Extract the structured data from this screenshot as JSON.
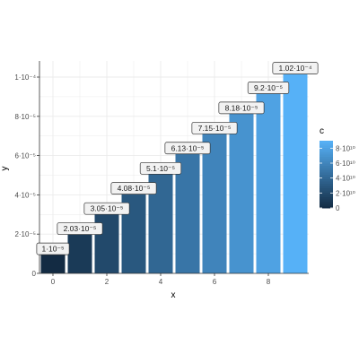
{
  "chart_data": {
    "type": "bar",
    "x": [
      0,
      1,
      2,
      3,
      4,
      5,
      6,
      7,
      8,
      9
    ],
    "values": [
      1e-05,
      2.03e-05,
      3.05e-05,
      4.08e-05,
      5.1e-05,
      6.13e-05,
      7.15e-05,
      8.18e-05,
      9.2e-05,
      0.000102
    ],
    "data_labels": [
      "1·10⁻⁵",
      "2.03·10⁻⁵",
      "3.05·10⁻⁵",
      "4.08·10⁻⁵",
      "5.1·10⁻⁵",
      "6.13·10⁻⁵",
      "7.15·10⁻⁵",
      "8.18·10⁻⁵",
      "9.2·10⁻⁵",
      "1.02·10⁻⁴"
    ],
    "fill_values": [
      0,
      10000000000.0,
      20000000000.0,
      30000000000.0,
      40000000000.0,
      50000000000.0,
      60000000000.0,
      70000000000.0,
      80000000000.0,
      90000000000.0
    ],
    "xlabel": "x",
    "ylabel": "y",
    "xlim": [
      -0.5,
      9.5
    ],
    "ylim": [
      0,
      0.0001
    ],
    "x_ticks": [
      0,
      2,
      4,
      6,
      8
    ],
    "x_tick_labels": [
      "0",
      "2",
      "4",
      "6",
      "8"
    ],
    "y_ticks": [
      0,
      2e-05,
      4e-05,
      6e-05,
      8e-05,
      0.0001
    ],
    "y_tick_labels": [
      "0",
      "2·10⁻⁵",
      "4·10⁻⁵",
      "6·10⁻⁵",
      "8·10⁻⁵",
      "1·10⁻⁴"
    ],
    "grid": true,
    "legend": {
      "title": "c",
      "placement": "right",
      "range": [
        0,
        90000000000.0
      ],
      "ticks": [
        0,
        20000000000.0,
        40000000000.0,
        60000000000.0,
        80000000000.0
      ],
      "tick_labels": [
        "0",
        "2·10¹⁰",
        "4·10¹⁰",
        "6·10¹⁰",
        "8·10¹⁰"
      ]
    },
    "colors": {
      "low": "#132b43",
      "high": "#56b1f7",
      "grid": "#ebebeb",
      "axis": "#333333",
      "label_fill": "#f2f2f2",
      "label_border": "#333333"
    }
  }
}
